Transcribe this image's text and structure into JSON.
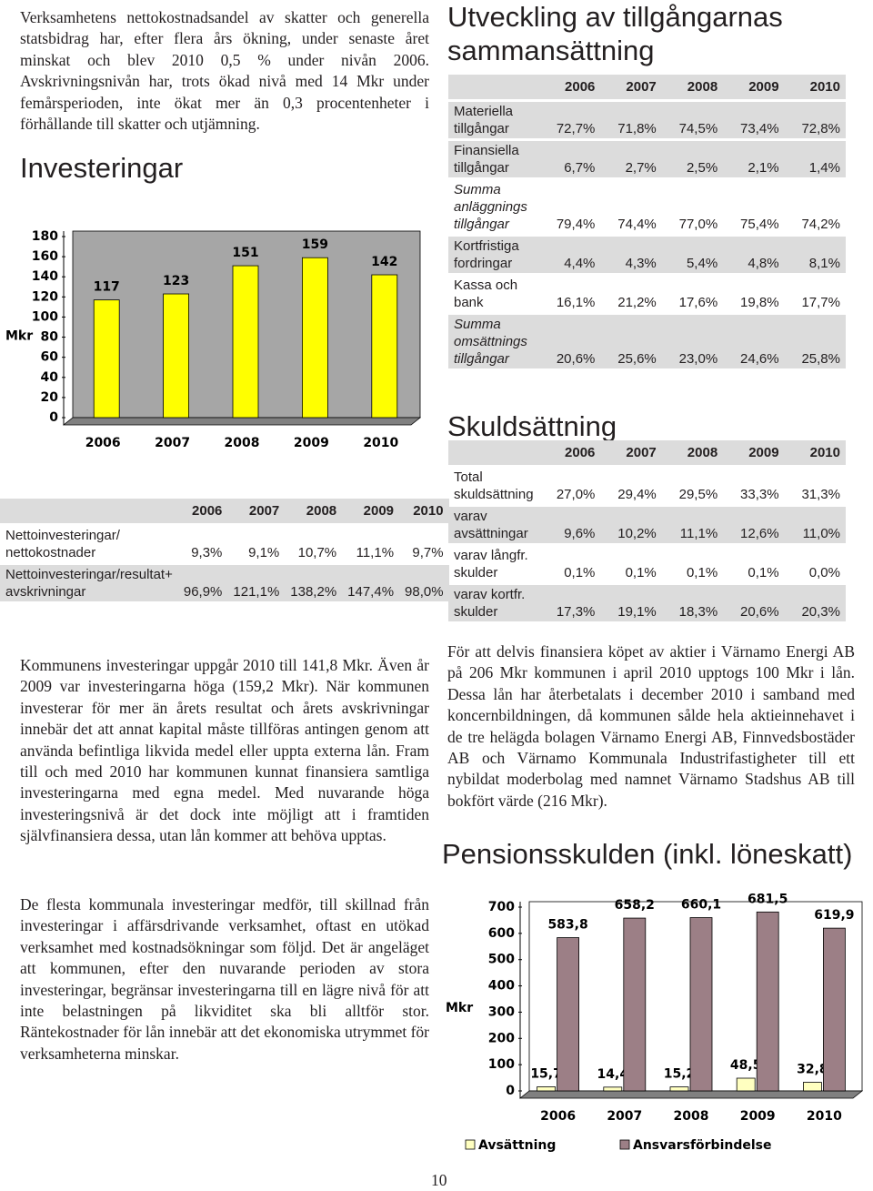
{
  "left_text": {
    "paragraph_1": "Verksamhetens nettokostnadsandel av skatter och generella statsbidrag har, efter flera års ökning, under senaste året minskat och blev 2010 0,5 % under nivån 2006. Avskrivningsnivån har, trots ökad nivå med 14 Mkr under femårsperioden, inte ökat mer än 0,3 procentenheter i förhållande till skatter och utjämning.",
    "paragraph_2": "Kommunens investeringar uppgår 2010 till 141,8 Mkr. Även år 2009 var investeringarna höga (159,2 Mkr). När kommunen investerar för mer än årets resultat och årets avskrivningar innebär det att annat kapital måste tillföras antingen genom att använda befintliga likvida medel eller uppta externa lån. Fram till och med 2010 har kommunen kunnat finansiera samtliga investeringarna med egna medel. Med nuvarande höga investeringsnivå är det dock inte möjligt att i framtiden självfinansiera dessa, utan lån kommer att behöva upptas.",
    "paragraph_3": "De flesta kommunala investeringar medför, till skillnad från investeringar i affärsdrivande verksamhet, oftast en utökad verksamhet med kostnadsökningar som följd. Det är angeläget att kommunen, efter den nuvarande perioden av stora investeringar, begränsar investeringarna till en lägre nivå för att inte belastningen på likviditet ska bli alltför stor. Räntekostnader för lån innebär att det ekonomiska utrymmet för verksamheterna minskar."
  },
  "chart_data": [
    {
      "type": "bar",
      "title": "Investeringar",
      "y_label": "Mkr",
      "categories": [
        "2006",
        "2007",
        "2008",
        "2009",
        "2010"
      ],
      "values": [
        117,
        123,
        151,
        159,
        142
      ],
      "color": "#ffff00",
      "ylim": [
        0,
        180
      ],
      "yticks": [
        0,
        20,
        40,
        60,
        80,
        100,
        120,
        140,
        160,
        180
      ]
    },
    {
      "type": "bar",
      "title": "Pensionsskulden (inkl. löneskatt)",
      "y_label": "Mkr",
      "categories": [
        "2006",
        "2007",
        "2008",
        "2009",
        "2010"
      ],
      "series": [
        {
          "name": "Avsättning",
          "color": "#ffffc0",
          "values": [
            15.7,
            14.4,
            15.2,
            48.5,
            32.8
          ],
          "value_labels": [
            "15,7",
            "14,4",
            "15,2",
            "48,5",
            "32,8"
          ]
        },
        {
          "name": "Ansvarsförbindelse",
          "color": "#9c7f86",
          "values": [
            583.8,
            658.2,
            660.1,
            681.5,
            619.9
          ],
          "value_labels": [
            "583,8",
            "658,2",
            "660,1",
            "681,5",
            "619,9"
          ]
        }
      ],
      "ylim": [
        0,
        700
      ],
      "yticks": [
        0,
        100,
        200,
        300,
        400,
        500,
        600,
        700
      ],
      "legend": "bottom"
    }
  ],
  "investment_table": {
    "header": [
      "2006",
      "2007",
      "2008",
      "2009",
      "2010"
    ],
    "rows": [
      {
        "label": "Nettoinvesteringar/ nettokostnader",
        "cells": [
          "9,3%",
          "9,1%",
          "10,7%",
          "11,1%",
          "9,7%"
        ],
        "shaded": false
      },
      {
        "label": "Nettoinvesteringar/resultat+ avskrivningar",
        "cells": [
          "96,9%",
          "121,1%",
          "138,2%",
          "147,4%",
          "98,0%"
        ],
        "shaded": true
      }
    ]
  },
  "asset_table": {
    "title": "Utveckling av tillgångarnas sammansättning",
    "header": [
      "2006",
      "2007",
      "2008",
      "2009",
      "2010"
    ],
    "rows": [
      {
        "label": "Materiella tillgångar",
        "cells": [
          "72,7%",
          "71,8%",
          "74,5%",
          "73,4%",
          "72,8%"
        ],
        "shaded": true,
        "italic": false
      },
      {
        "label": "Finansiella tillgångar",
        "cells": [
          "6,7%",
          "2,7%",
          "2,5%",
          "2,1%",
          "1,4%"
        ],
        "shaded": true,
        "italic": false
      },
      {
        "label": "Summa anläggnings tillgångar",
        "cells": [
          "79,4%",
          "74,4%",
          "77,0%",
          "75,4%",
          "74,2%"
        ],
        "shaded": false,
        "italic": true
      },
      {
        "label": "Kortfristiga fordringar",
        "cells": [
          "4,4%",
          "4,3%",
          "5,4%",
          "4,8%",
          "8,1%"
        ],
        "shaded": true,
        "italic": false
      },
      {
        "label": "Kassa och bank",
        "cells": [
          "16,1%",
          "21,2%",
          "17,6%",
          "19,8%",
          "17,7%"
        ],
        "shaded": false,
        "italic": false
      },
      {
        "label": "Summa omsättnings tillgångar",
        "cells": [
          "20,6%",
          "25,6%",
          "23,0%",
          "24,6%",
          "25,8%"
        ],
        "shaded": true,
        "italic": true
      }
    ]
  },
  "debt_table": {
    "title": "Skuldsättning",
    "header": [
      "2006",
      "2007",
      "2008",
      "2009",
      "2010"
    ],
    "rows": [
      {
        "label": "Total skuldsättning",
        "cells": [
          "27,0%",
          "29,4%",
          "29,5%",
          "33,3%",
          "31,3%"
        ],
        "shaded": false,
        "italic": false
      },
      {
        "label": "varav avsättningar",
        "cells": [
          "9,6%",
          "10,2%",
          "11,1%",
          "12,6%",
          "11,0%"
        ],
        "shaded": true,
        "italic": false
      },
      {
        "label": "varav långfr. skulder",
        "cells": [
          "0,1%",
          "0,1%",
          "0,1%",
          "0,1%",
          "0,0%"
        ],
        "shaded": false,
        "italic": false
      },
      {
        "label": "varav kortfr. skulder",
        "cells": [
          "17,3%",
          "19,1%",
          "18,3%",
          "20,6%",
          "20,3%"
        ],
        "shaded": true,
        "italic": false
      }
    ]
  },
  "right_text": {
    "paragraph": "För att delvis finansiera köpet av aktier i Värnamo Energi AB på 206 Mkr kommunen i april 2010 upptogs 100 Mkr i lån. Dessa lån har återbetalats i december 2010 i samband med koncernbildningen, då kommunen sålde hela aktieinnehavet i de tre helägda bolagen Värnamo Energi AB, Finnvedsbostäder AB och Värnamo Kommunala Industrifastigheter till ett nybildat moderbolag med namnet Värnamo Stadshus AB till bokfört värde (216 Mkr)."
  },
  "page_number": "10"
}
